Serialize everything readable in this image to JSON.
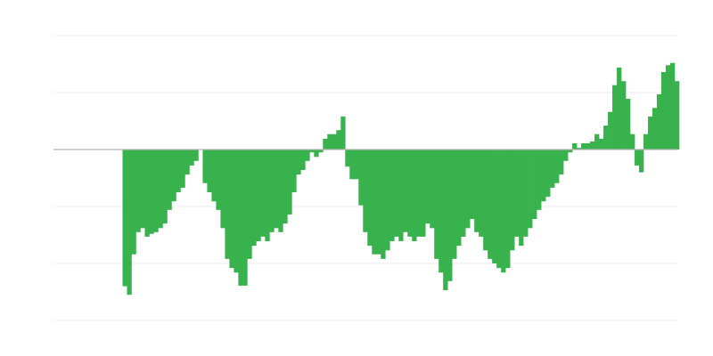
{
  "chart_data": {
    "type": "bar",
    "title": "",
    "xlabel": "",
    "ylabel": "",
    "ylim": [
      -3,
      2
    ],
    "gridlines": [
      2,
      1,
      -1,
      -2,
      -3
    ],
    "grid": true,
    "legend": "none",
    "colors": {
      "bar": "#38b24c",
      "grid": "#eeeeee",
      "zero_line": "#b3b3b3"
    },
    "series": [
      {
        "values": [
          -2.4,
          -2.55,
          -1.84,
          -1.45,
          -1.38,
          -1.53,
          -1.48,
          -1.45,
          -1.38,
          -1.3,
          -1.06,
          -0.91,
          -0.75,
          -0.67,
          -0.44,
          -0.28,
          -0.2,
          0.0,
          -0.59,
          -0.75,
          -0.91,
          -1.06,
          -1.38,
          -1.92,
          -2.08,
          -2.16,
          -2.39,
          -2.39,
          -1.92,
          -1.69,
          -1.61,
          -1.53,
          -1.61,
          -1.45,
          -1.38,
          -1.45,
          -1.3,
          -1.14,
          -0.75,
          -0.44,
          -0.36,
          -0.2,
          -0.05,
          -0.13,
          -0.05,
          0.19,
          0.27,
          0.27,
          0.34,
          0.58,
          -0.3,
          -0.52,
          -0.52,
          -0.98,
          -1.45,
          -1.69,
          -1.84,
          -1.84,
          -1.92,
          -1.77,
          -1.61,
          -1.53,
          -1.61,
          -1.45,
          -1.53,
          -1.61,
          -1.53,
          -1.53,
          -1.3,
          -1.38,
          -1.92,
          -2.16,
          -2.47,
          -2.31,
          -1.92,
          -1.69,
          -1.53,
          -1.38,
          -1.22,
          -1.45,
          -1.53,
          -1.77,
          -1.92,
          -2.0,
          -2.08,
          -2.16,
          -2.08,
          -1.77,
          -1.53,
          -1.69,
          -1.53,
          -1.38,
          -1.22,
          -1.06,
          -0.91,
          -0.83,
          -0.67,
          -0.59,
          -0.44,
          -0.2,
          -0.05,
          0.11,
          0.03,
          0.11,
          0.11,
          0.14,
          0.27,
          0.19,
          0.42,
          0.66,
          1.13,
          1.44,
          1.2,
          0.89,
          0.27,
          -0.28,
          -0.4,
          0.27,
          0.58,
          0.73,
          0.97,
          1.36,
          1.48,
          1.52,
          1.2
        ]
      }
    ]
  }
}
